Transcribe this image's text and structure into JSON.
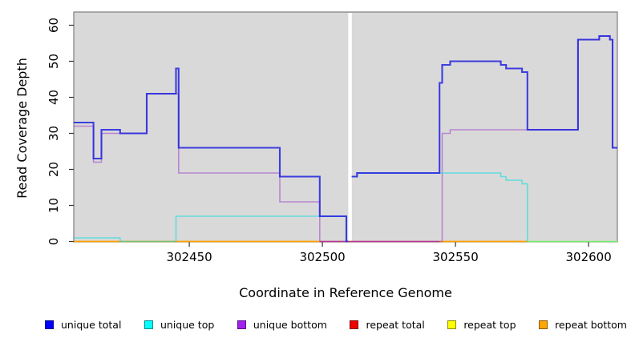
{
  "chart_data": {
    "type": "line",
    "step": true,
    "title": "",
    "xlabel": "Coordinate in Reference Genome",
    "ylabel": "Read Coverage Depth",
    "xlim": [
      302406.6,
      302610.8
    ],
    "ylim": [
      0,
      63
    ],
    "x_ticks": [
      302450,
      302500,
      302550,
      302600
    ],
    "y_ticks": [
      0,
      10,
      20,
      30,
      40,
      50,
      60
    ],
    "plot_bg": "#d9d9d9",
    "grid": false,
    "legend_position": "bottom",
    "gap": {
      "x_start": 302509.7,
      "x_end": 302511.05,
      "note": "white no-data strip"
    },
    "series": [
      {
        "name": "repeat top",
        "stroke": "#FFFF00",
        "opacity": 1,
        "width": 1.6,
        "steps": [
          [
            302577,
            0
          ]
        ],
        "end": 302610.8
      },
      {
        "name": "repeat total",
        "stroke": "#D42A4A",
        "opacity": 0.9,
        "width": 1.6,
        "steps": [
          [
            302499,
            0
          ]
        ],
        "end": 302544
      },
      {
        "name": "repeat bottom",
        "stroke": "#FF9E00",
        "opacity": 1,
        "width": 1.8,
        "steps": [
          [
            302406.6,
            0
          ],
          [
            302499,
            null
          ],
          [
            302544,
            0
          ],
          [
            302577,
            null
          ]
        ],
        "end": 302610.8
      },
      {
        "name": "unique bottom",
        "stroke": "#9932CC",
        "opacity": 0.5,
        "width": 1.6,
        "steps": [
          [
            302406.6,
            32
          ],
          [
            302414,
            22
          ],
          [
            302417,
            30
          ],
          [
            302434,
            41
          ],
          [
            302446,
            19
          ],
          [
            302484,
            11
          ],
          [
            302499,
            0
          ],
          [
            302509.7,
            null
          ],
          [
            302511,
            0
          ],
          [
            302545,
            30
          ],
          [
            302548,
            31
          ],
          [
            302596,
            56
          ],
          [
            302604,
            57
          ],
          [
            302608,
            56
          ],
          [
            302609,
            26
          ]
        ],
        "end": 302610.8
      },
      {
        "name": "unique top",
        "stroke": "#00DFDF",
        "opacity": 0.55,
        "width": 1.6,
        "steps": [
          [
            302406.6,
            1
          ],
          [
            302424,
            0
          ],
          [
            302445,
            7
          ],
          [
            302509,
            0
          ],
          [
            302509.7,
            null
          ],
          [
            302511,
            18
          ],
          [
            302513,
            19
          ],
          [
            302567,
            18
          ],
          [
            302569,
            17
          ],
          [
            302575,
            16
          ],
          [
            302577,
            0
          ]
        ],
        "end": 302610.8
      },
      {
        "name": "unique total",
        "stroke": "#2727E0",
        "opacity": 0.88,
        "width": 2.1,
        "steps": [
          [
            302406.6,
            33
          ],
          [
            302414,
            23
          ],
          [
            302417,
            31
          ],
          [
            302424,
            30
          ],
          [
            302434,
            41
          ],
          [
            302445,
            48
          ],
          [
            302446,
            26
          ],
          [
            302484,
            18
          ],
          [
            302499,
            7
          ],
          [
            302509,
            0
          ],
          [
            302509.7,
            null
          ],
          [
            302511,
            18
          ],
          [
            302513,
            19
          ],
          [
            302544,
            44
          ],
          [
            302545,
            49
          ],
          [
            302548,
            50
          ],
          [
            302567,
            49
          ],
          [
            302569,
            48
          ],
          [
            302575,
            47
          ],
          [
            302577,
            31
          ],
          [
            302596,
            56
          ],
          [
            302604,
            57
          ],
          [
            302608,
            56
          ],
          [
            302609,
            26
          ]
        ],
        "end": 302610.8
      }
    ],
    "legend": [
      {
        "label": "unique total",
        "color": "#0000FF"
      },
      {
        "label": "unique top",
        "color": "#00FFFF"
      },
      {
        "label": "unique bottom",
        "color": "#A020F0"
      },
      {
        "label": "repeat total",
        "color": "#EE0000"
      },
      {
        "label": "repeat top",
        "color": "#FFFF00"
      },
      {
        "label": "repeat bottom",
        "color": "#FFA500"
      }
    ]
  }
}
